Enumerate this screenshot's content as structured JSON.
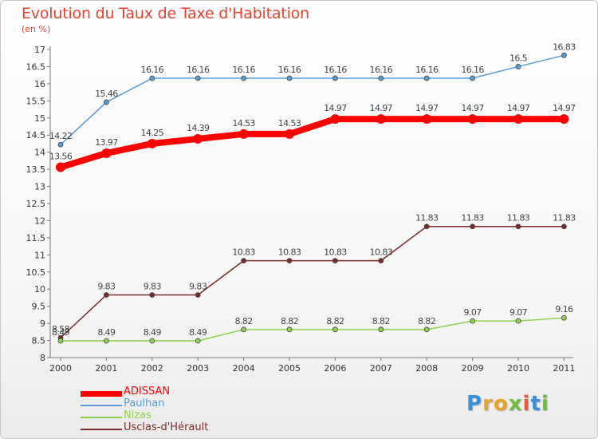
{
  "chart_data": {
    "type": "line",
    "title": "Evolution du Taux de Taxe d'Habitation",
    "subtitle": "(en %)",
    "x": [
      "2000",
      "2001",
      "2002",
      "2003",
      "2004",
      "2005",
      "2006",
      "2007",
      "2008",
      "2009",
      "2010",
      "2011"
    ],
    "ylim": [
      8,
      17
    ],
    "yticks": [
      "8",
      "8.5",
      "9",
      "9.5",
      "10",
      "10.5",
      "11",
      "11.5",
      "12",
      "12.5",
      "13",
      "13.5",
      "14",
      "14.5",
      "15",
      "15.5",
      "16",
      "16.5",
      "17"
    ],
    "grid": false,
    "legend_position": "bottom-left",
    "series": [
      {
        "name": "ADISSAN",
        "color": "#ff0000",
        "values": [
          13.56,
          13.97,
          14.25,
          14.39,
          14.53,
          14.53,
          14.97,
          14.97,
          14.97,
          14.97,
          14.97,
          14.97
        ],
        "labels": [
          "13.56",
          "13.97",
          "14.25",
          "14.39",
          "14.53",
          "14.53",
          "14.97",
          "14.97",
          "14.97",
          "14.97",
          "14.97",
          "14.97"
        ]
      },
      {
        "name": "Paulhan",
        "color": "#5b9bd5",
        "values": [
          14.22,
          15.46,
          16.16,
          16.16,
          16.16,
          16.16,
          16.16,
          16.16,
          16.16,
          16.16,
          16.5,
          16.83
        ],
        "labels": [
          "14.22",
          "15.46",
          "16.16",
          "16.16",
          "16.16",
          "16.16",
          "16.16",
          "16.16",
          "16.16",
          "16.16",
          "16.5",
          "16.83"
        ]
      },
      {
        "name": "Nizas",
        "color": "#8fd14f",
        "values": [
          8.49,
          8.49,
          8.49,
          8.49,
          8.82,
          8.82,
          8.82,
          8.82,
          8.82,
          9.07,
          9.07,
          9.16
        ],
        "labels": [
          "8.49",
          "8.49",
          "8.49",
          "8.49",
          "8.82",
          "8.82",
          "8.82",
          "8.82",
          "8.82",
          "9.07",
          "9.07",
          "9.16"
        ]
      },
      {
        "name": "Usclas-d'Hérault",
        "color": "#7a2a2a",
        "values": [
          8.58,
          9.83,
          9.83,
          9.83,
          10.83,
          10.83,
          10.83,
          10.83,
          11.83,
          11.83,
          11.83,
          11.83
        ],
        "labels": [
          "8.58",
          "9.83",
          "9.83",
          "9.83",
          "10.83",
          "10.83",
          "10.83",
          "10.83",
          "11.83",
          "11.83",
          "11.83",
          "11.83"
        ]
      }
    ]
  },
  "brand": {
    "letters": [
      "P",
      "r",
      "o",
      "x",
      "i",
      "t",
      "i"
    ],
    "colors": [
      "#3a8fd6",
      "#e7a32a",
      "#e7a32a",
      "#6cbf3a",
      "#e85d3a",
      "#3a8fd6",
      "#6cbf3a"
    ]
  }
}
